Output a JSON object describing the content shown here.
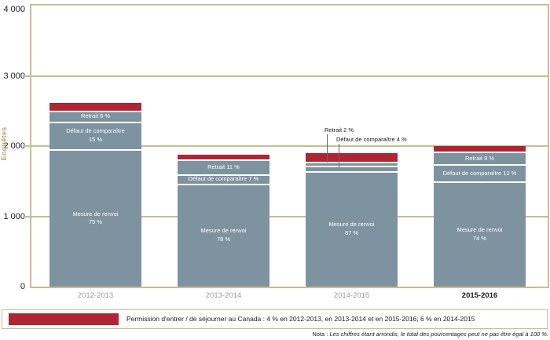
{
  "chart": {
    "legend": {
      "swatch_color": "#b02534",
      "label": "Permission d'entrer / de séjourner au Canada : 4 % en 2012-2013, en 2013-2014 et en 2015-2016; 6 % en 2014-2015"
    },
    "note": {
      "prefix": "Nota : ",
      "text": "Les chiffres étant arrondis, le total des pourcentages peut ne pas être égal à 100 %."
    }
  },
  "chart_data": {
    "type": "bar",
    "stacked": true,
    "title": "",
    "xlabel": "",
    "ylabel": "Enquêtes",
    "ylim": [
      0,
      4000
    ],
    "ytick_values": [
      0,
      1000,
      2000,
      3000,
      4000
    ],
    "ytick_labels": [
      "0",
      "1 000",
      "2 000",
      "3 000",
      "4 000"
    ],
    "grid": true,
    "legend_position": "bottom",
    "categories": [
      "2012-2013",
      "2013-2014",
      "2014-2015",
      "2015-2016"
    ],
    "highlighted_category": "2015-2016",
    "totals_estimated": [
      2610,
      1880,
      1895,
      2000
    ],
    "colors": {
      "segment": "#7e93a0",
      "permission": "#b02534",
      "axis": "#c8bd94"
    },
    "series": [
      {
        "name": "Mesure de renvoi",
        "values_pct": [
          75,
          78,
          87,
          74
        ]
      },
      {
        "name": "Défaut de comparaître",
        "values_pct": [
          15,
          7,
          4,
          12
        ]
      },
      {
        "name": "Retrait",
        "values_pct": [
          6,
          11,
          2,
          9
        ]
      },
      {
        "name": "Permission d'entrer / de séjourner au Canada",
        "values_pct": [
          4,
          4,
          6,
          4
        ]
      }
    ],
    "bar_segment_labels": [
      [
        [
          "Mesure de renvoi",
          "75 %"
        ],
        [
          "Défaut de comparaître",
          "15 %"
        ],
        [
          "Retrait 6 %"
        ],
        []
      ],
      [
        [
          "Mesure de renvoi",
          "78 %"
        ],
        [
          "Défaut de comparaître 7 %"
        ],
        [
          "Retrait 11 %"
        ],
        []
      ],
      [
        [
          "Mesure de renvoi",
          "87 %"
        ],
        [],
        [],
        []
      ],
      [
        [
          "Mesure de renvoi",
          "74 %"
        ],
        [
          "Défaut de comparaître 12 %"
        ],
        [
          "Retrait 9 %"
        ],
        []
      ]
    ],
    "annotations": [
      {
        "text": "Retrait 2 %",
        "target_category": "2014-2015",
        "target_series": "Retrait"
      },
      {
        "text": "Défaut de comparaître 4 %",
        "target_category": "2014-2015",
        "target_series": "Défaut de comparaître"
      }
    ]
  }
}
